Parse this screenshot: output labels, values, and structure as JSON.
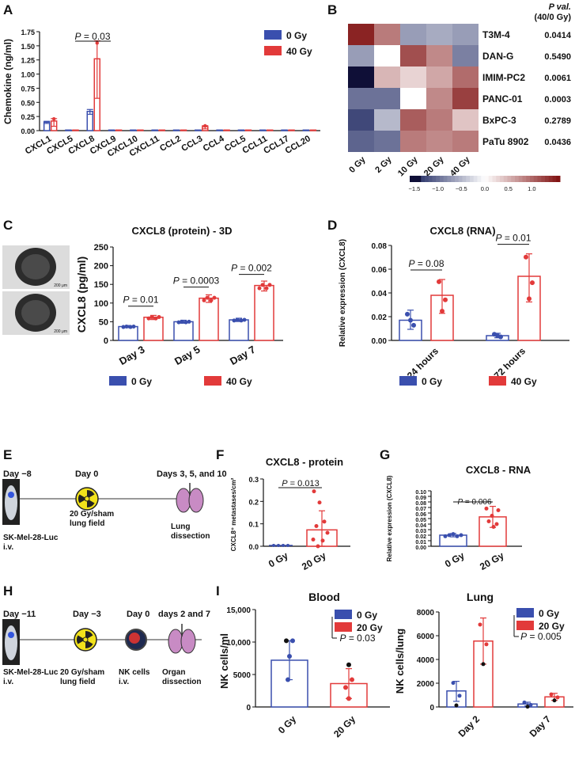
{
  "colors": {
    "blue": "#3a4fae",
    "red": "#e23a3a",
    "gray": "#555555"
  },
  "icons": [
    "spheroid-image",
    "mouse-luc-image",
    "radiation-icon",
    "lung-icon",
    "nk-cell-icon"
  ],
  "panels": {
    "A": "A",
    "B": "B",
    "C": "C",
    "D": "D",
    "E": "E",
    "F": "F",
    "G": "G",
    "H": "H",
    "I": "I"
  },
  "legend": {
    "g0": "0 Gy",
    "g40": "40 Gy",
    "g20": "20 Gy"
  },
  "chart_data": [
    {
      "id": "A",
      "type": "bar",
      "ylabel": "Chemokine (ng/ml)",
      "ylim": [
        0,
        1.75
      ],
      "yticks": [
        "0.00",
        "0.25",
        "0.50",
        "0.75",
        "1.00",
        "1.25",
        "1.50",
        "1.75"
      ],
      "categories": [
        "CXCL1",
        "CXCL5",
        "CXCL8",
        "CXCL9",
        "CXCL10",
        "CXCL11",
        "CCL2",
        "CCL3",
        "CCL4",
        "CCL5",
        "CCL11",
        "CCL17",
        "CCL20"
      ],
      "series": [
        {
          "name": "0 Gy",
          "values": [
            0.15,
            0.01,
            0.34,
            0.01,
            0.01,
            0.01,
            0.01,
            0.01,
            0.01,
            0.01,
            0.01,
            0.01,
            0.01
          ]
        },
        {
          "name": "40 Gy",
          "values": [
            0.17,
            0.01,
            1.27,
            0.01,
            0.01,
            0.01,
            0.01,
            0.07,
            0.01,
            0.01,
            0.01,
            0.01,
            0.01
          ]
        }
      ],
      "annotation": "P = 0.03"
    },
    {
      "id": "B",
      "type": "heatmap",
      "rows": [
        "T3M-4",
        "DAN-G",
        "IMIM-PC2",
        "PANC-01",
        "BxPC-3",
        "PaTu 8902"
      ],
      "columns": [
        "0 Gy",
        "2 Gy",
        "10 Gy",
        "20 Gy",
        "40 Gy"
      ],
      "values": [
        [
          1.5,
          0.9,
          -0.7,
          -0.6,
          -0.7
        ],
        [
          -0.7,
          0.0,
          1.2,
          0.8,
          -0.9
        ],
        [
          -1.6,
          0.5,
          0.3,
          0.6,
          1.0
        ],
        [
          -1.0,
          -1.0,
          0.0,
          0.8,
          1.3
        ],
        [
          -1.3,
          -0.5,
          1.1,
          0.9,
          0.4
        ],
        [
          -1.1,
          -1.0,
          0.9,
          0.8,
          0.9
        ]
      ],
      "pvalue_header": [
        "P val.",
        "(40/0 Gy)"
      ],
      "pvalues": [
        "0.0414",
        "0.5490",
        "0.0061",
        "0.0003",
        "0.2789",
        "0.0436"
      ],
      "colorbar_ticks": [
        "−1.5",
        "−1.0",
        "−0.5",
        "0.0",
        "0.5",
        "1.0"
      ]
    },
    {
      "id": "C",
      "type": "bar",
      "title": "CXCL8 (protein) - 3D",
      "ylabel": "CXCL8 (pg/ml)",
      "ylim": [
        0,
        250
      ],
      "yticks": [
        "0",
        "50",
        "100",
        "150",
        "200",
        "250"
      ],
      "categories": [
        "Day 3",
        "Day 5",
        "Day 7"
      ],
      "series": [
        {
          "name": "0 Gy",
          "values": [
            37,
            50,
            55
          ]
        },
        {
          "name": "40 Gy",
          "values": [
            62,
            113,
            147
          ]
        }
      ],
      "annotations": [
        "P = 0.01",
        "P = 0.0003",
        "P = 0.002"
      ],
      "scalebar": "200 μm"
    },
    {
      "id": "D",
      "type": "bar",
      "title": "CXCL8 (RNA)",
      "ylabel": "Relative expression (CXCL8)",
      "ylim": [
        0,
        0.08
      ],
      "yticks": [
        "0.00",
        "0.02",
        "0.04",
        "0.06",
        "0.08"
      ],
      "categories": [
        "24 hours",
        "72 hours"
      ],
      "series": [
        {
          "name": "0 Gy",
          "values": [
            0.017,
            0.004
          ]
        },
        {
          "name": "40 Gy",
          "values": [
            0.038,
            0.054
          ]
        }
      ],
      "annotations": [
        "P = 0.08",
        "P = 0.01"
      ]
    },
    {
      "id": "F",
      "type": "bar",
      "title": "CXCL8 - protein",
      "ylabel": "CXCL8⁺ metastases/cm²",
      "ylim": [
        0,
        0.3
      ],
      "yticks": [
        "0.0",
        "0.1",
        "0.2",
        "0.3"
      ],
      "categories": [
        "0 Gy",
        "20 Gy"
      ],
      "values": [
        0.0,
        0.073
      ],
      "annotation": "P = 0.013"
    },
    {
      "id": "G",
      "type": "bar",
      "title": "CXCL8 - RNA",
      "ylabel": "Relative expression (CXCL8)",
      "ylim": [
        0,
        0.1
      ],
      "yticks": [
        "0.00",
        "0.01",
        "0.02",
        "0.03",
        "0.04",
        "0.05",
        "0.06",
        "0.07",
        "0.08",
        "0.09",
        "0.10"
      ],
      "categories": [
        "0 Gy",
        "20 Gy"
      ],
      "values": [
        0.02,
        0.053
      ],
      "annotation": "P = 0.006"
    },
    {
      "id": "I-blood",
      "type": "bar",
      "title": "Blood",
      "ylabel": "NK cells/ml",
      "ylim": [
        0,
        15000
      ],
      "yticks": [
        "0",
        "5000",
        "10,000",
        "15,000"
      ],
      "categories": [
        "0 Gy",
        "20 Gy"
      ],
      "values": [
        7200,
        3600
      ],
      "annotation": "P = 0.03"
    },
    {
      "id": "I-lung",
      "type": "bar",
      "title": "Lung",
      "ylabel": "NK cells/lung",
      "ylim": [
        0,
        8000
      ],
      "yticks": [
        "0",
        "2000",
        "4000",
        "6000",
        "8000"
      ],
      "categories": [
        "Day 2",
        "Day 7"
      ],
      "series": [
        {
          "name": "0 Gy",
          "values": [
            1350,
            250
          ]
        },
        {
          "name": "20 Gy",
          "values": [
            5550,
            850
          ]
        }
      ],
      "annotation": "P = 0.005"
    }
  ],
  "timelineE": {
    "labels": [
      "Day −8",
      "Day 0",
      "Days 3, 5, and 10"
    ],
    "sub": [
      "SK-Mel-28-Luc\ni.v.",
      "20 Gy/sham\nlung field",
      "Lung\ndissection"
    ]
  },
  "timelineH": {
    "labels": [
      "Day −11",
      "Day −3",
      "Day 0",
      "days 2 and 7"
    ],
    "sub": [
      "SK-Mel-28-Luc\ni.v.",
      "20 Gy/sham\nlung field",
      "NK cells\ni.v.",
      "Organ\ndissection"
    ]
  }
}
